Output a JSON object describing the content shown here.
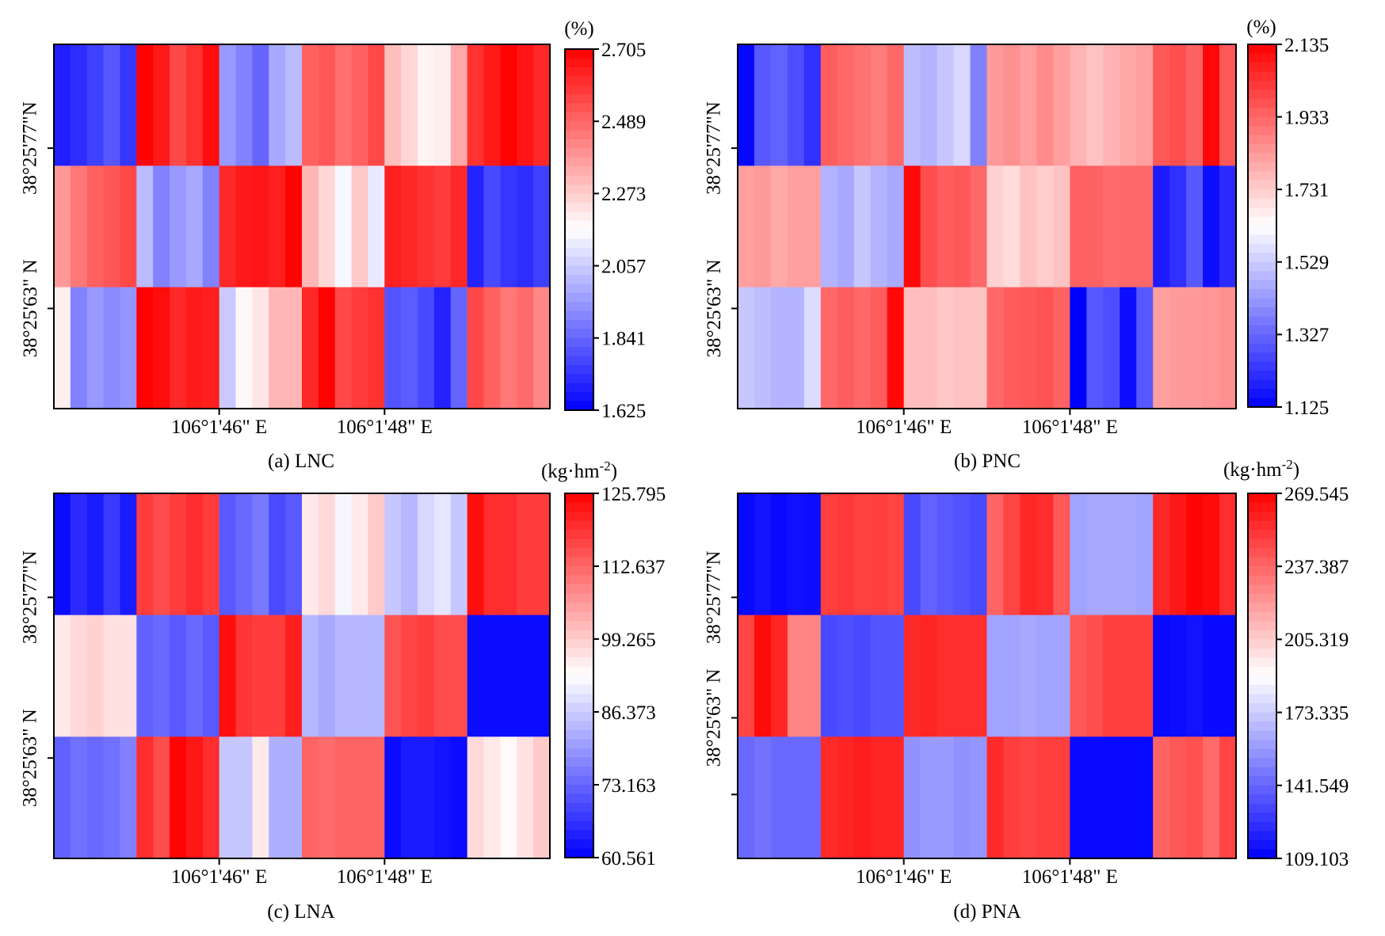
{
  "chart_data": [
    {
      "type": "heatmap",
      "caption": "(a) LNC",
      "unit": "(%)",
      "x_ticks": [
        "106°1'46\" E",
        "106°1'48\" E"
      ],
      "y_ticks": [
        "38°25'77\"N",
        "38°25'63\" N"
      ],
      "colorbar_ticks": [
        "2.705",
        "2.489",
        "2.273",
        "2.057",
        "1.841",
        "1.625"
      ],
      "vmin": 1.625,
      "vmax": 2.705,
      "colormap": [
        "#0000ff",
        "#ffffff",
        "#ff0000"
      ],
      "grid": "off",
      "rows": [
        [
          1.69,
          1.72,
          1.76,
          1.81,
          1.74,
          2.7,
          2.65,
          2.55,
          2.6,
          2.68,
          1.95,
          1.9,
          1.84,
          1.98,
          2.02,
          2.5,
          2.52,
          2.47,
          2.5,
          2.55,
          2.3,
          2.25,
          2.19,
          2.2,
          2.35,
          2.6,
          2.65,
          2.7,
          2.66,
          2.62
        ],
        [
          2.38,
          2.45,
          2.5,
          2.52,
          2.55,
          2.02,
          1.9,
          1.95,
          1.98,
          1.9,
          2.62,
          2.65,
          2.66,
          2.64,
          2.7,
          2.32,
          2.25,
          2.15,
          2.28,
          2.12,
          2.64,
          2.62,
          2.6,
          2.58,
          2.62,
          1.7,
          1.78,
          1.74,
          1.72,
          1.76
        ],
        [
          2.2,
          1.9,
          1.95,
          1.92,
          1.94,
          2.7,
          2.68,
          2.62,
          2.65,
          2.64,
          2.05,
          2.18,
          2.22,
          2.32,
          2.32,
          2.62,
          2.7,
          2.55,
          2.58,
          2.6,
          1.8,
          1.82,
          1.78,
          1.7,
          1.84,
          2.55,
          2.5,
          2.45,
          2.48,
          2.42
        ]
      ]
    },
    {
      "type": "heatmap",
      "caption": "(b) PNC",
      "unit": "(%)",
      "x_ticks": [
        "106°1'46\" E",
        "106°1'48\" E"
      ],
      "y_ticks": [
        "38°25'77\"N",
        "38°25'63\" N"
      ],
      "colorbar_ticks": [
        "2.135",
        "1.933",
        "1.731",
        "1.529",
        "1.327",
        "1.125"
      ],
      "vmin": 1.125,
      "vmax": 2.135,
      "colormap": [
        "#0000ff",
        "#ffffff",
        "#ff0000"
      ],
      "grid": "off",
      "rows": [
        [
          1.14,
          1.3,
          1.32,
          1.28,
          1.22,
          1.95,
          1.93,
          1.91,
          1.89,
          1.93,
          1.5,
          1.48,
          1.52,
          1.55,
          1.38,
          1.83,
          1.85,
          1.82,
          1.86,
          1.82,
          1.78,
          1.75,
          1.78,
          1.8,
          1.82,
          1.96,
          1.98,
          1.94,
          2.12,
          1.96
        ],
        [
          1.82,
          1.83,
          1.8,
          1.82,
          1.82,
          1.48,
          1.46,
          1.52,
          1.48,
          1.46,
          2.12,
          1.98,
          1.95,
          1.96,
          1.93,
          1.72,
          1.7,
          1.75,
          1.73,
          1.75,
          1.94,
          1.94,
          1.92,
          1.93,
          1.93,
          1.18,
          1.22,
          1.3,
          1.15,
          1.21
        ],
        [
          1.52,
          1.5,
          1.48,
          1.48,
          1.56,
          1.93,
          1.95,
          1.93,
          1.95,
          2.12,
          1.76,
          1.76,
          1.74,
          1.75,
          1.75,
          1.93,
          1.95,
          1.96,
          1.97,
          1.94,
          1.12,
          1.3,
          1.28,
          1.15,
          1.3,
          1.82,
          1.83,
          1.83,
          1.84,
          1.85
        ]
      ]
    },
    {
      "type": "heatmap",
      "caption": "(c) LNA",
      "unit": "(kg·hm-2)",
      "x_ticks": [
        "106°1'46\" E",
        "106°1'48\" E"
      ],
      "y_ticks": [
        "38°25'77\"N",
        "38°25'63\" N"
      ],
      "colorbar_ticks": [
        "125.795",
        "112.637",
        "99.265",
        "86.373",
        "73.163",
        "60.561"
      ],
      "vmin": 60.561,
      "vmax": 125.795,
      "colormap": [
        "#0000ff",
        "#ffffff",
        "#ff0000"
      ],
      "grid": "off",
      "rows": [
        [
          62,
          66,
          64,
          68,
          64,
          118,
          116,
          118,
          120,
          118,
          72,
          74,
          76,
          70,
          72,
          96,
          98,
          92,
          96,
          100,
          86,
          84,
          88,
          90,
          86,
          124,
          120,
          120,
          118,
          118
        ],
        [
          96,
          98,
          99,
          97,
          97,
          73,
          74,
          72,
          74,
          72,
          124,
          119,
          118,
          118,
          122,
          84,
          82,
          84,
          84,
          84,
          115,
          117,
          118,
          116,
          116,
          62,
          62,
          62,
          62,
          62
        ],
        [
          73,
          75,
          74,
          75,
          77,
          120,
          116,
          125,
          123,
          120,
          86,
          86,
          96,
          83,
          83,
          113,
          112,
          113,
          113,
          113,
          62,
          64,
          64,
          63,
          62,
          98,
          96,
          94,
          97,
          100
        ]
      ]
    },
    {
      "type": "heatmap",
      "caption": "(d) PNA",
      "unit": "(kg·hm-2)",
      "x_ticks": [
        "106°1'46\" E",
        "106°1'48\" E"
      ],
      "y_ticks": [
        "38°25'77\"N",
        "38°25'63\" N"
      ],
      "colorbar_ticks": [
        "269.545",
        "237.387",
        "205.319",
        "173.335",
        "141.549",
        "109.103"
      ],
      "vmin": 109.103,
      "vmax": 269.545,
      "colormap": [
        "#0000ff",
        "#ffffff",
        "#ff0000"
      ],
      "grid": "off",
      "rows": [
        [
          112,
          115,
          112,
          114,
          113,
          250,
          252,
          249,
          250,
          248,
          132,
          140,
          137,
          135,
          132,
          238,
          248,
          257,
          255,
          242,
          160,
          162,
          162,
          162,
          160,
          257,
          262,
          268,
          266,
          255
        ],
        [
          248,
          266,
          258,
          228,
          228,
          132,
          134,
          132,
          136,
          136,
          256,
          258,
          255,
          255,
          255,
          160,
          160,
          162,
          160,
          160,
          242,
          245,
          250,
          250,
          250,
          112,
          113,
          115,
          112,
          112
        ],
        [
          142,
          145,
          142,
          142,
          142,
          256,
          258,
          260,
          258,
          258,
          155,
          158,
          158,
          155,
          156,
          256,
          250,
          248,
          250,
          250,
          112,
          112,
          112,
          112,
          112,
          238,
          242,
          244,
          236,
          248
        ]
      ]
    }
  ]
}
